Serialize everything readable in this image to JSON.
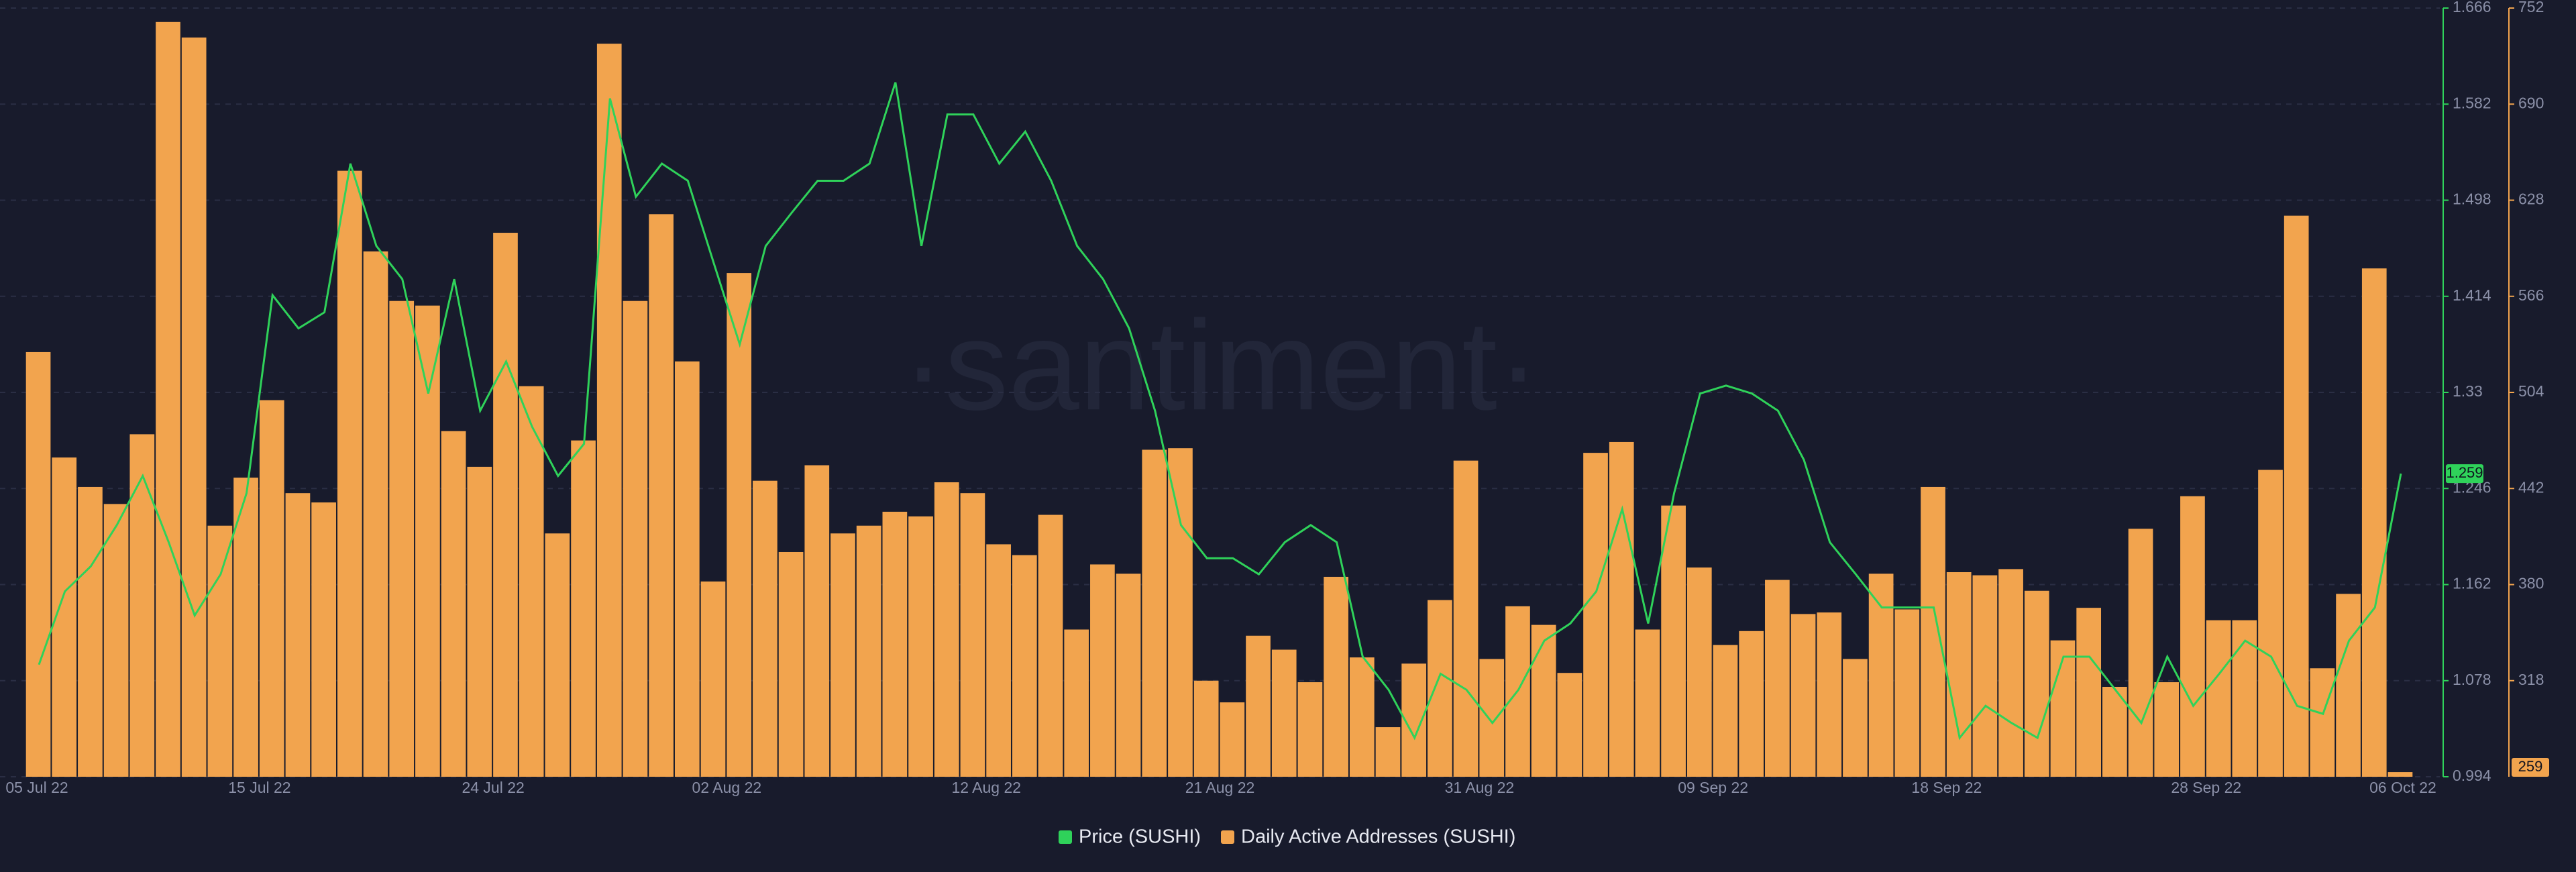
{
  "chart_data": {
    "type": "combo",
    "watermark": "·santiment·",
    "x": [
      "2022-07-06",
      "2022-07-07",
      "2022-07-08",
      "2022-07-09",
      "2022-07-10",
      "2022-07-11",
      "2022-07-12",
      "2022-07-13",
      "2022-07-14",
      "2022-07-15",
      "2022-07-16",
      "2022-07-17",
      "2022-07-18",
      "2022-07-19",
      "2022-07-20",
      "2022-07-21",
      "2022-07-22",
      "2022-07-23",
      "2022-07-24",
      "2022-07-25",
      "2022-07-26",
      "2022-07-27",
      "2022-07-28",
      "2022-07-29",
      "2022-07-30",
      "2022-07-31",
      "2022-08-01",
      "2022-08-02",
      "2022-08-03",
      "2022-08-04",
      "2022-08-05",
      "2022-08-06",
      "2022-08-07",
      "2022-08-08",
      "2022-08-09",
      "2022-08-10",
      "2022-08-11",
      "2022-08-12",
      "2022-08-13",
      "2022-08-14",
      "2022-08-15",
      "2022-08-16",
      "2022-08-17",
      "2022-08-18",
      "2022-08-19",
      "2022-08-20",
      "2022-08-21",
      "2022-08-22",
      "2022-08-23",
      "2022-08-24",
      "2022-08-25",
      "2022-08-26",
      "2022-08-27",
      "2022-08-28",
      "2022-08-29",
      "2022-08-30",
      "2022-08-31",
      "2022-09-01",
      "2022-09-02",
      "2022-09-03",
      "2022-09-04",
      "2022-09-05",
      "2022-09-06",
      "2022-09-07",
      "2022-09-08",
      "2022-09-09",
      "2022-09-10",
      "2022-09-11",
      "2022-09-12",
      "2022-09-13",
      "2022-09-14",
      "2022-09-15",
      "2022-09-16",
      "2022-09-17",
      "2022-09-18",
      "2022-09-19",
      "2022-09-20",
      "2022-09-21",
      "2022-09-22",
      "2022-09-23",
      "2022-09-24",
      "2022-09-25",
      "2022-09-26",
      "2022-09-27",
      "2022-09-28",
      "2022-09-29",
      "2022-09-30",
      "2022-10-01",
      "2022-10-02",
      "2022-10-03",
      "2022-10-04",
      "2022-10-05"
    ],
    "xlim": [
      "2022-07-05",
      "2022-10-07"
    ],
    "xticks": [
      {
        "value": "2022-07-05",
        "label": "05 Jul 22"
      },
      {
        "value": "2022-07-15",
        "label": "15 Jul 22"
      },
      {
        "value": "2022-07-24",
        "label": "24 Jul 22"
      },
      {
        "value": "2022-08-02",
        "label": "02 Aug 22"
      },
      {
        "value": "2022-08-12",
        "label": "12 Aug 22"
      },
      {
        "value": "2022-08-21",
        "label": "21 Aug 22"
      },
      {
        "value": "2022-08-31",
        "label": "31 Aug 22"
      },
      {
        "value": "2022-09-09",
        "label": "09 Sep 22"
      },
      {
        "value": "2022-09-18",
        "label": "18 Sep 22"
      },
      {
        "value": "2022-09-28",
        "label": "28 Sep 22"
      },
      {
        "value": "2022-10-06",
        "label": "06 Oct 22"
      }
    ],
    "ylim": [
      0.994,
      1.666
    ],
    "yticks": [
      0.994,
      1.078,
      1.162,
      1.246,
      1.33,
      1.414,
      1.498,
      1.582,
      1.666
    ],
    "y2lim": [
      256,
      752
    ],
    "y2ticks": [
      318,
      380,
      442,
      504,
      566,
      628,
      690,
      752
    ],
    "grid": true,
    "series": [
      {
        "name": "Price (SUSHI)",
        "color": "#2fd25a",
        "type": "line",
        "axis": "y",
        "values": [
          1.092,
          1.156,
          1.178,
          1.214,
          1.257,
          1.199,
          1.135,
          1.171,
          1.242,
          1.415,
          1.386,
          1.4,
          1.53,
          1.458,
          1.429,
          1.329,
          1.429,
          1.314,
          1.357,
          1.3,
          1.257,
          1.285,
          1.587,
          1.501,
          1.53,
          1.515,
          1.443,
          1.372,
          1.458,
          1.487,
          1.515,
          1.515,
          1.53,
          1.601,
          1.458,
          1.573,
          1.573,
          1.53,
          1.558,
          1.515,
          1.458,
          1.429,
          1.386,
          1.314,
          1.214,
          1.185,
          1.185,
          1.171,
          1.199,
          1.214,
          1.199,
          1.099,
          1.07,
          1.028,
          1.084,
          1.07,
          1.041,
          1.07,
          1.113,
          1.128,
          1.156,
          1.228,
          1.128,
          1.242,
          1.329,
          1.336,
          1.329,
          1.314,
          1.271,
          1.199,
          1.171,
          1.142,
          1.142,
          1.142,
          1.028,
          1.056,
          1.041,
          1.028,
          1.099,
          1.099,
          1.07,
          1.041,
          1.099,
          1.056,
          1.084,
          1.113,
          1.099,
          1.056,
          1.049,
          1.113,
          1.142,
          1.259
        ]
      },
      {
        "name": "Daily Active Addresses (SUSHI)",
        "color": "#f2a44e",
        "type": "bar",
        "axis": "y2",
        "values": [
          530,
          462,
          443,
          432,
          477,
          743,
          733,
          418,
          449,
          499,
          439,
          433,
          647,
          595,
          563,
          560,
          479,
          456,
          607,
          508,
          413,
          473,
          729,
          563,
          619,
          524,
          382,
          581,
          447,
          401,
          457,
          413,
          418,
          427,
          424,
          446,
          439,
          406,
          399,
          425,
          351,
          393,
          387,
          467,
          468,
          318,
          304,
          347,
          338,
          317,
          385,
          333,
          288,
          329,
          370,
          460,
          332,
          366,
          354,
          323,
          465,
          472,
          351,
          431,
          391,
          341,
          350,
          383,
          361,
          362,
          332,
          387,
          364,
          443,
          388,
          386,
          390,
          376,
          344,
          365,
          314,
          416,
          317,
          437,
          357,
          357,
          454,
          618,
          326,
          374,
          584,
          259
        ]
      }
    ]
  }
}
